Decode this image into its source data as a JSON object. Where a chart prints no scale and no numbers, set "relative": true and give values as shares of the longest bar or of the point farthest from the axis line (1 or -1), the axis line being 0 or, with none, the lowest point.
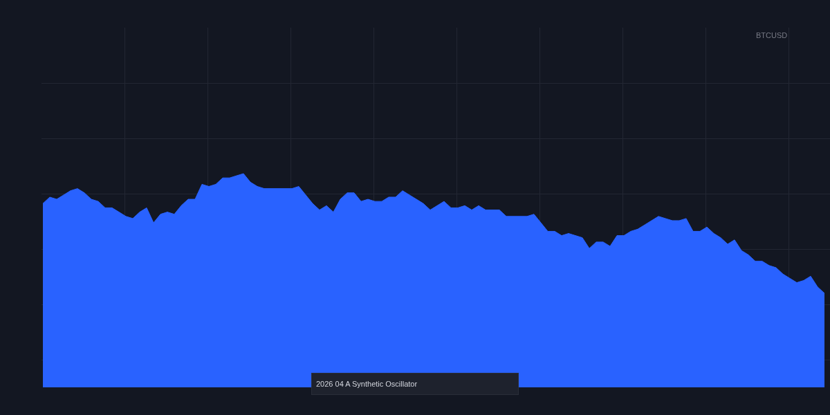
{
  "chart_data": {
    "type": "area",
    "relative": true,
    "grid": true,
    "tick_labels": false,
    "categories": [
      null,
      null,
      null,
      null,
      null,
      null,
      null,
      null,
      null,
      null,
      null,
      null,
      null,
      null,
      null,
      null,
      null,
      null,
      null,
      null,
      null,
      null,
      null,
      null,
      null,
      null,
      null,
      null,
      null,
      null,
      null,
      null,
      null,
      null,
      null,
      null,
      null,
      null,
      null,
      null,
      null,
      null,
      null,
      null,
      null,
      null,
      null,
      null,
      null,
      null,
      null,
      null,
      null,
      null,
      null,
      null,
      null,
      null,
      null,
      null,
      null,
      null,
      null,
      null,
      null,
      null,
      null,
      null,
      null,
      null,
      null,
      null,
      null,
      null,
      null,
      null,
      null,
      null,
      null,
      null,
      null,
      null,
      null,
      null,
      null,
      null,
      null,
      null,
      null,
      null,
      null,
      null,
      null,
      null,
      null,
      null,
      null,
      null,
      null,
      null,
      null,
      null,
      null,
      null,
      null,
      null,
      null,
      null,
      null,
      null,
      null,
      null,
      null,
      null
    ],
    "series": [
      {
        "color": "#2962ff",
        "values": [
          0.86,
          0.89,
          0.88,
          0.9,
          0.92,
          0.93,
          0.91,
          0.88,
          0.87,
          0.84,
          0.84,
          0.82,
          0.8,
          0.79,
          0.82,
          0.84,
          0.77,
          0.81,
          0.82,
          0.81,
          0.85,
          0.88,
          0.88,
          0.95,
          0.94,
          0.95,
          0.98,
          0.98,
          0.99,
          1,
          0.96,
          0.94,
          0.93,
          0.93,
          0.93,
          0.93,
          0.93,
          0.94,
          0.9,
          0.86,
          0.83,
          0.85,
          0.82,
          0.88,
          0.91,
          0.91,
          0.87,
          0.88,
          0.87,
          0.87,
          0.89,
          0.89,
          0.92,
          0.9,
          0.88,
          0.86,
          0.83,
          0.85,
          0.87,
          0.84,
          0.84,
          0.85,
          0.83,
          0.85,
          0.83,
          0.83,
          0.83,
          0.8,
          0.8,
          0.8,
          0.8,
          0.81,
          0.77,
          0.73,
          0.73,
          0.71,
          0.72,
          0.71,
          0.7,
          0.65,
          0.68,
          0.68,
          0.66,
          0.71,
          0.71,
          0.73,
          0.74,
          0.76,
          0.78,
          0.8,
          0.79,
          0.78,
          0.78,
          0.79,
          0.73,
          0.73,
          0.75,
          0.72,
          0.7,
          0.67,
          0.69,
          0.64,
          0.62,
          0.59,
          0.59,
          0.57,
          0.56,
          0.53,
          0.51,
          0.49,
          0.5,
          0.52,
          0.47,
          0.44
        ]
      }
    ],
    "annotations": [
      "BTCUSD",
      "2026 04 A Synthetic Oscillator"
    ]
  }
}
